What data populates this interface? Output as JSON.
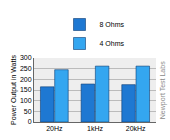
{
  "chart_data": {
    "type": "bar",
    "categories": [
      "20Hz",
      "1kHz",
      "20kHz"
    ],
    "series": [
      {
        "name": "8 Ohms",
        "color": "#1e78d2",
        "values": [
          165,
          178,
          175
        ]
      },
      {
        "name": "4 Ohms",
        "color": "#34a6f0",
        "values": [
          245,
          262,
          262
        ]
      }
    ],
    "y_label": "Power Output in Watts",
    "annotations": [
      "Newport Test Labs"
    ],
    "ylim": [
      0,
      300
    ],
    "yticks": [
      0,
      50,
      100,
      150,
      200,
      250,
      300
    ],
    "grid": true,
    "legend": "top"
  }
}
